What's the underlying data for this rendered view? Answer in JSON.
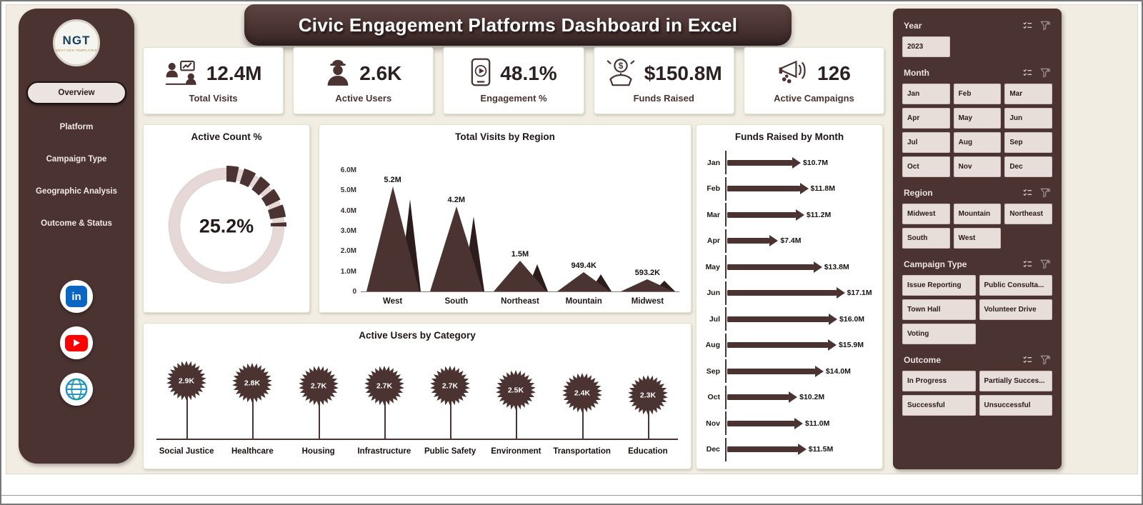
{
  "title": "Civic Engagement Platforms Dashboard in Excel",
  "sidebar": {
    "logo": {
      "text": "NGT",
      "subtext": "NEXT GEN TEMPLATES"
    },
    "linkedin_label": "in",
    "items": [
      {
        "label": "Overview",
        "active": true
      },
      {
        "label": "Platform",
        "active": false
      },
      {
        "label": "Campaign Type",
        "active": false
      },
      {
        "label": "Geographic Analysis",
        "active": false
      },
      {
        "label": "Outcome & Status",
        "active": false
      }
    ],
    "social": [
      "linkedin-icon",
      "youtube-icon",
      "web-icon"
    ]
  },
  "kpis": [
    {
      "value": "12.4M",
      "label": "Total Visits",
      "icon": "total-visits-icon"
    },
    {
      "value": "2.6K",
      "label": "Active Users",
      "icon": "active-users-icon"
    },
    {
      "value": "48.1%",
      "label": "Engagement %",
      "icon": "engagement-icon"
    },
    {
      "value": "$150.8M",
      "label": "Funds Raised",
      "icon": "funds-raised-icon"
    },
    {
      "value": "126",
      "label": "Active Campaigns",
      "icon": "active-campaigns-icon"
    }
  ],
  "chart_data": [
    {
      "type": "donut",
      "title": "Active Count %",
      "value": 25.2,
      "label": "25.2%",
      "colors": {
        "active": "#4a3331",
        "remainder": "#e7d8d8"
      }
    },
    {
      "type": "area",
      "title": "Total Visits by Region",
      "categories": [
        "West",
        "South",
        "Northeast",
        "Mountain",
        "Midwest"
      ],
      "values": [
        5200000,
        4200000,
        1500000,
        949400,
        593200
      ],
      "value_labels": [
        "5.2M",
        "4.2M",
        "1.5M",
        "949.4K",
        "593.2K"
      ],
      "ylabel_ticks": [
        "0",
        "1.0M",
        "2.0M",
        "3.0M",
        "4.0M",
        "5.0M",
        "6.0M"
      ],
      "ylim": [
        0,
        6000000
      ]
    },
    {
      "type": "lollipop",
      "title": "Active Users by Category",
      "categories": [
        "Social Justice",
        "Healthcare",
        "Housing",
        "Infrastructure",
        "Public Safety",
        "Environment",
        "Transportation",
        "Education"
      ],
      "values": [
        2900,
        2800,
        2700,
        2700,
        2700,
        2500,
        2400,
        2300
      ],
      "value_labels": [
        "2.9K",
        "2.8K",
        "2.7K",
        "2.7K",
        "2.7K",
        "2.5K",
        "2.4K",
        "2.3K"
      ]
    },
    {
      "type": "bar",
      "title": "Funds Raised by Month",
      "categories": [
        "Jan",
        "Feb",
        "Mar",
        "Apr",
        "May",
        "Jun",
        "Jul",
        "Aug",
        "Sep",
        "Oct",
        "Nov",
        "Dec"
      ],
      "values": [
        10.7,
        11.8,
        11.2,
        7.4,
        13.8,
        17.1,
        16.0,
        15.9,
        14.0,
        10.2,
        11.0,
        11.5
      ],
      "value_labels": [
        "$10.7M",
        "$11.8M",
        "$11.2M",
        "$7.4M",
        "$13.8M",
        "$17.1M",
        "$16.0M",
        "$15.9M",
        "$14.0M",
        "$10.2M",
        "$11.0M",
        "$11.5M"
      ],
      "xlim": [
        0,
        17.1
      ]
    }
  ],
  "slicers": [
    {
      "title": "Year",
      "columns": 3,
      "buttons": [
        "2023"
      ]
    },
    {
      "title": "Month",
      "columns": 3,
      "buttons": [
        "Jan",
        "Feb",
        "Mar",
        "Apr",
        "May",
        "Jun",
        "Jul",
        "Aug",
        "Sep",
        "Oct",
        "Nov",
        "Dec"
      ]
    },
    {
      "title": "Region",
      "columns": 3,
      "buttons": [
        "Midwest",
        "Mountain",
        "Northeast",
        "South",
        "West"
      ]
    },
    {
      "title": "Campaign Type",
      "columns": 2,
      "buttons": [
        "Issue Reporting",
        "Public Consulta...",
        "Town Hall",
        "Volunteer Drive",
        "Voting"
      ]
    },
    {
      "title": "Outcome",
      "columns": 2,
      "buttons": [
        "In Progress",
        "Partially Succes...",
        "Successful",
        "Unsuccessful"
      ]
    }
  ]
}
